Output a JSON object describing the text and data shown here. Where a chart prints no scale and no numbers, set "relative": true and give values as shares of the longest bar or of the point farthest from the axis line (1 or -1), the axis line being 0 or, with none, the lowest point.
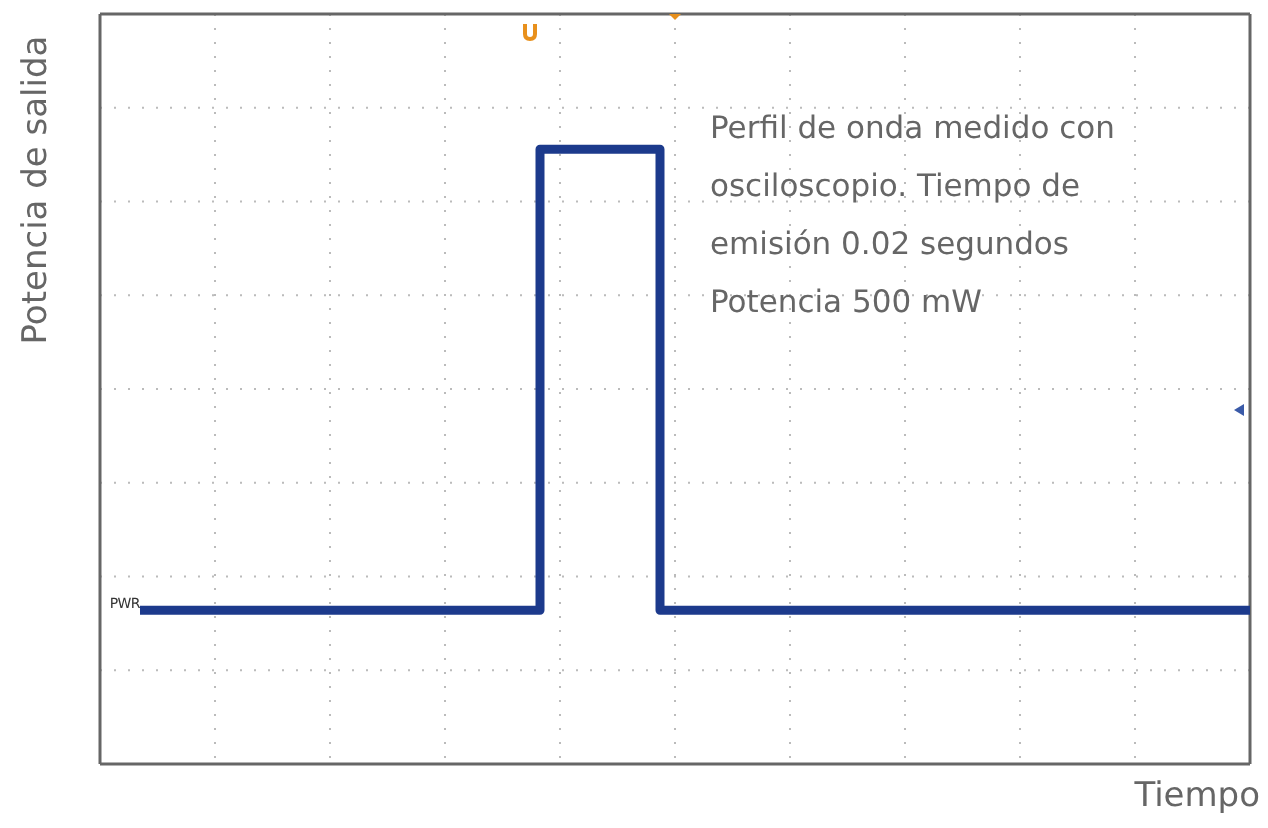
{
  "chart_data": {
    "type": "step",
    "relative": true,
    "xlabel": "Tiempo",
    "ylabel": "Potencia de salida",
    "grid": true,
    "categories": [
      null,
      null,
      null,
      null,
      null,
      null,
      null,
      null,
      null,
      null,
      null,
      null,
      null,
      null,
      null,
      null,
      null,
      null,
      null,
      null,
      null,
      null,
      null,
      null,
      null,
      null,
      null,
      null,
      null,
      null,
      null,
      null,
      null,
      null,
      null,
      null,
      null,
      null,
      null,
      null,
      null,
      null,
      null,
      null,
      null,
      null,
      null,
      null,
      null,
      null,
      null,
      null,
      null,
      null,
      null,
      null,
      null,
      null,
      null,
      null,
      null,
      null,
      null,
      null,
      null,
      null,
      null,
      null,
      null,
      null,
      null,
      null,
      null,
      null,
      null,
      null,
      null,
      null,
      null,
      null,
      null,
      null,
      null,
      null,
      null,
      null,
      null,
      null,
      null,
      null,
      null,
      null,
      null,
      null,
      null,
      null,
      null,
      null,
      null,
      null,
      null,
      null,
      null,
      null,
      null,
      null,
      null,
      null,
      null,
      null,
      null,
      null,
      null,
      null,
      null,
      null
    ],
    "series": [
      {
        "color": "#1c3a8c",
        "values": [
          null,
          null,
          null,
          null,
          0.25,
          0.25,
          0.25,
          0.25,
          0.25,
          0.25,
          0.25,
          0.25,
          0.25,
          0.25,
          0.25,
          0.25,
          0.25,
          0.25,
          0.25,
          0.25,
          0.25,
          0.25,
          0.25,
          0.25,
          0.25,
          0.25,
          0.25,
          0.25,
          0.25,
          0.25,
          0.25,
          0.25,
          0.25,
          0.25,
          0.25,
          0.25,
          0.25,
          0.25,
          0.25,
          0.25,
          0.25,
          0.25,
          0.25,
          0.25,
          1,
          1,
          1,
          1,
          1,
          1,
          1,
          1,
          1,
          1,
          1,
          1,
          0.25,
          0.25,
          0.25,
          0.25,
          0.25,
          0.25,
          0.25,
          0.25,
          0.25,
          0.25,
          0.25,
          0.25,
          0.25,
          0.25,
          0.25,
          0.25,
          0.25,
          0.25,
          0.25,
          0.25,
          0.25,
          0.25,
          0.25,
          0.25,
          0.25,
          0.25,
          0.25,
          0.25,
          0.25,
          0.25,
          0.25,
          0.25,
          0.25,
          0.25,
          0.25,
          0.25,
          0.25,
          0.25,
          0.25,
          0.25,
          0.25,
          0.25,
          0.25,
          0.25,
          0.25,
          0.25,
          0.25,
          0.25,
          0.25,
          0.25,
          0.25,
          0.25,
          0.25,
          0.25,
          0.25,
          0.25,
          0.25,
          0.25,
          0.25,
          0.25
        ]
      }
    ],
    "annotations": [
      "Perfil de onda medido con osciloscopio. Tiempo de emisión 0.02 segundos Potencia 500 mW",
      "PWR"
    ]
  }
}
